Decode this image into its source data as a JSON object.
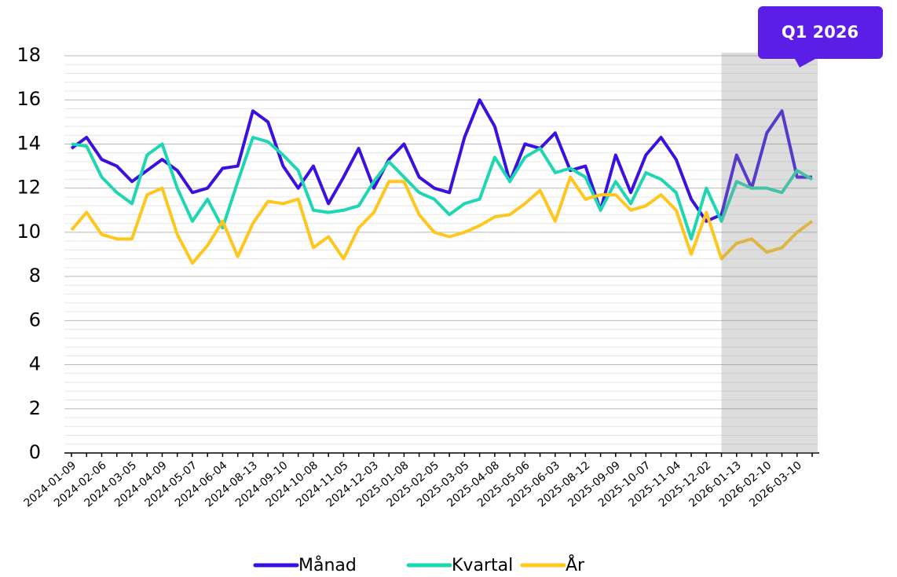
{
  "chart_data": {
    "type": "line",
    "categories": [
      "2024-01-09",
      null,
      "2024-02-06",
      null,
      "2024-03-05",
      null,
      "2024-04-09",
      null,
      "2024-05-07",
      null,
      "2024-06-04",
      null,
      "2024-08-13",
      null,
      "2024-09-10",
      null,
      "2024-10-08",
      null,
      "2024-11-05",
      null,
      "2024-12-03",
      null,
      "2025-01-08",
      null,
      "2025-02-05",
      null,
      "2025-03-05",
      null,
      "2025-04-08",
      null,
      "2025-05-06",
      null,
      "2025-06-03",
      null,
      "2025-08-12",
      null,
      "2025-09-09",
      null,
      "2025-10-07",
      null,
      "2025-11-04",
      null,
      "2025-12-02",
      null,
      "2026-01-13",
      null,
      "2026-02-10",
      null,
      "2026-03-10",
      null
    ],
    "series": [
      {
        "name": "Månad",
        "color": "#3b10e0",
        "values": [
          13.8,
          14.3,
          13.3,
          13.0,
          12.3,
          12.8,
          13.3,
          12.8,
          11.8,
          12.0,
          12.9,
          13.0,
          15.5,
          15.0,
          13.0,
          12.0,
          13.0,
          11.3,
          12.5,
          13.8,
          12.0,
          13.3,
          14.0,
          12.5,
          12.0,
          11.8,
          14.3,
          16.0,
          14.8,
          12.3,
          14.0,
          13.8,
          14.5,
          12.8,
          13.0,
          11.0,
          13.5,
          11.8,
          13.5,
          14.3,
          13.3,
          11.5,
          10.5,
          10.8,
          13.5,
          12.0,
          14.5,
          15.5,
          12.5,
          12.5
        ]
      },
      {
        "name": "Kvartal",
        "color": "#1fd6b2",
        "values": [
          14.0,
          13.9,
          12.5,
          11.8,
          11.3,
          13.5,
          14.0,
          12.0,
          10.5,
          11.5,
          10.2,
          12.3,
          14.3,
          14.1,
          13.5,
          12.8,
          11.0,
          10.9,
          11.0,
          11.2,
          12.3,
          13.2,
          12.5,
          11.8,
          11.5,
          10.8,
          11.3,
          11.5,
          13.4,
          12.3,
          13.4,
          13.8,
          12.7,
          12.9,
          12.5,
          11.0,
          12.3,
          11.3,
          12.7,
          12.4,
          11.8,
          9.7,
          12.0,
          10.5,
          12.3,
          12.0,
          12.0,
          11.8,
          12.8,
          12.4
        ]
      },
      {
        "name": "År",
        "color": "#ffc61e",
        "values": [
          10.1,
          10.9,
          9.9,
          9.7,
          9.7,
          11.7,
          12.0,
          9.9,
          8.6,
          9.4,
          10.5,
          8.9,
          10.4,
          11.4,
          11.3,
          11.5,
          9.3,
          9.8,
          8.8,
          10.2,
          10.9,
          12.3,
          12.3,
          10.8,
          10.0,
          9.8,
          10.0,
          10.3,
          10.7,
          10.8,
          11.3,
          11.9,
          10.5,
          12.5,
          11.5,
          11.7,
          11.7,
          11.0,
          11.2,
          11.7,
          11.0,
          9.0,
          10.9,
          8.8,
          9.5,
          9.7,
          9.1,
          9.3,
          10.0,
          10.5
        ]
      }
    ],
    "ylim": [
      0,
      18
    ],
    "yticks": [
      0,
      2,
      4,
      6,
      8,
      10,
      12,
      14,
      16,
      18
    ],
    "grid": true,
    "minor_grid_divisions": 5,
    "highlight": {
      "label": "Q1 2026",
      "start_index": 43,
      "color": "#5a1ee6"
    },
    "legend": "bottom"
  }
}
